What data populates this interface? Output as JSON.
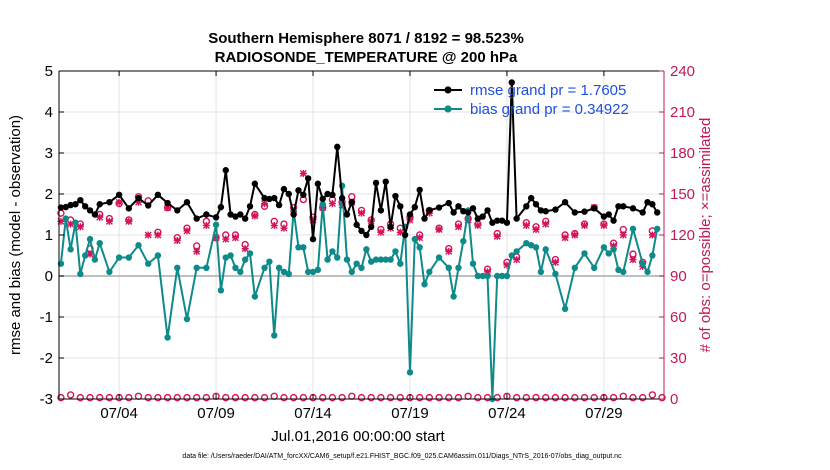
{
  "chart_data": {
    "type": "line",
    "title": "Southern Hemisphere 8071 / 8192 = 98.523%",
    "subtitle": "RADIOSONDE_TEMPERATURE @ 200 hPa",
    "xlabel": "Jul.01,2016 00:00:00 start",
    "ylabel_left": "rmse and bias (model - observation)",
    "ylabel_right": "# of obs: o=possible; ×=assimilated",
    "footnote": "data file: /Users/raeder/DAI/ATM_forcXX/CAM6_setup/f.e21.FHIST_BGC.f09_025.CAM6assim.011/Diags_NTrS_2016-07/obs_diag_output.nc",
    "x_tick_labels": [
      "07/04",
      "07/09",
      "07/14",
      "07/19",
      "07/24",
      "07/29"
    ],
    "x_tick_days": [
      4,
      9,
      14,
      19,
      24,
      29
    ],
    "xlim": [
      0.9,
      32.1
    ],
    "ylim_left": [
      -3,
      5
    ],
    "yticks_left": [
      "-3",
      "-2",
      "-1",
      "0",
      "1",
      "2",
      "3",
      "4",
      "5"
    ],
    "ylim_right": [
      0,
      240
    ],
    "yticks_right": [
      "0",
      "30",
      "60",
      "90",
      "120",
      "150",
      "180",
      "210",
      "240"
    ],
    "grid": true,
    "legend_position": "top-right",
    "colors": {
      "rmse": "#000000",
      "bias": "#0f8a8a",
      "obs": "#d4145a",
      "right_axis": "#c0185a",
      "zero_line": "#aaaaaa",
      "legend_text": "#1f4fe0"
    },
    "series": [
      {
        "name": "rmse grand pr = 1.7605",
        "axis": "left",
        "x": [
          1.0,
          1.25,
          1.5,
          1.75,
          2.0,
          2.25,
          2.5,
          2.75,
          3.0,
          3.5,
          4.0,
          4.5,
          5.0,
          5.5,
          6.0,
          6.5,
          7.0,
          7.5,
          8.0,
          8.5,
          9.0,
          9.25,
          9.5,
          9.75,
          10.0,
          10.25,
          10.5,
          10.75,
          11.0,
          11.5,
          11.75,
          12.0,
          12.25,
          12.5,
          12.75,
          13.0,
          13.25,
          13.5,
          13.75,
          14.0,
          14.25,
          14.5,
          14.75,
          15.0,
          15.25,
          15.5,
          15.75,
          16.0,
          16.25,
          16.5,
          16.75,
          17.0,
          17.25,
          17.5,
          17.75,
          18.0,
          18.25,
          18.5,
          18.75,
          19.0,
          19.25,
          19.5,
          19.75,
          20.0,
          20.5,
          21.0,
          21.25,
          21.5,
          21.75,
          22.0,
          22.25,
          22.5,
          22.75,
          23.0,
          23.25,
          23.5,
          23.75,
          24.0,
          24.25,
          24.5,
          25.0,
          25.25,
          25.5,
          25.75,
          26.0,
          26.5,
          27.0,
          27.5,
          28.0,
          28.5,
          29.0,
          29.25,
          29.5,
          29.75,
          30.0,
          30.5,
          31.0,
          31.25,
          31.5,
          31.75
        ],
        "y": [
          1.67,
          1.68,
          1.73,
          1.75,
          1.85,
          1.7,
          1.6,
          1.5,
          1.75,
          1.8,
          1.98,
          1.65,
          1.9,
          1.72,
          1.98,
          1.78,
          1.6,
          1.8,
          1.4,
          1.5,
          1.43,
          1.68,
          2.58,
          1.5,
          1.45,
          1.5,
          1.4,
          1.7,
          2.25,
          1.9,
          1.88,
          1.9,
          1.73,
          2.12,
          2.0,
          1.5,
          2.09,
          1.98,
          2.38,
          0.9,
          2.25,
          1.88,
          2.0,
          1.98,
          3.15,
          1.9,
          1.5,
          1.8,
          1.25,
          1.1,
          1.0,
          1.2,
          2.27,
          1.6,
          2.3,
          1.2,
          1.95,
          1.7,
          1.0,
          1.5,
          1.68,
          2.1,
          1.4,
          1.6,
          1.67,
          1.78,
          1.55,
          1.7,
          1.58,
          1.55,
          1.65,
          1.4,
          1.45,
          1.6,
          1.3,
          1.35,
          1.35,
          1.3,
          4.72,
          1.4,
          1.7,
          1.9,
          1.75,
          1.6,
          1.58,
          1.62,
          1.8,
          1.55,
          1.57,
          1.65,
          1.45,
          1.5,
          1.35,
          1.7,
          1.7,
          1.65,
          1.55,
          1.8,
          1.75,
          1.55
        ]
      },
      {
        "name": "bias grand pr = 0.34922",
        "axis": "left",
        "x": [
          1.0,
          1.25,
          1.5,
          1.75,
          2.0,
          2.25,
          2.5,
          2.75,
          3.0,
          3.5,
          4.0,
          4.5,
          5.0,
          5.5,
          6.0,
          6.5,
          7.0,
          7.5,
          8.0,
          8.5,
          9.0,
          9.25,
          9.5,
          9.75,
          10.0,
          10.25,
          10.5,
          10.75,
          11.0,
          11.5,
          11.75,
          12.0,
          12.25,
          12.5,
          12.75,
          13.0,
          13.25,
          13.5,
          13.75,
          14.0,
          14.25,
          14.5,
          14.75,
          15.0,
          15.25,
          15.5,
          15.75,
          16.0,
          16.25,
          16.5,
          16.75,
          17.0,
          17.25,
          17.5,
          17.75,
          18.0,
          18.25,
          18.5,
          18.75,
          19.0,
          19.25,
          19.5,
          19.75,
          20.0,
          20.5,
          21.0,
          21.25,
          21.5,
          21.75,
          22.0,
          22.25,
          22.5,
          22.75,
          23.0,
          23.25,
          23.5,
          23.75,
          24.0,
          24.25,
          24.5,
          25.0,
          25.25,
          25.5,
          25.75,
          26.0,
          26.5,
          27.0,
          27.5,
          28.0,
          28.5,
          29.0,
          29.25,
          29.5,
          29.75,
          30.0,
          30.5,
          31.0,
          31.25,
          31.5,
          31.75
        ],
        "y": [
          0.3,
          1.4,
          0.65,
          1.3,
          0.05,
          0.5,
          0.9,
          0.4,
          0.8,
          0.1,
          0.45,
          0.45,
          0.75,
          0.3,
          0.5,
          -1.5,
          0.2,
          -1.05,
          0.2,
          0.2,
          1.25,
          -0.35,
          0.45,
          0.5,
          0.2,
          0.1,
          0.4,
          0.55,
          -0.5,
          0.2,
          0.35,
          -1.45,
          0.2,
          0.1,
          0.05,
          1.6,
          0.7,
          0.7,
          0.1,
          0.1,
          0.15,
          1.75,
          0.4,
          0.6,
          0.45,
          2.2,
          0.4,
          0.1,
          0.3,
          0.2,
          0.65,
          0.35,
          0.4,
          0.4,
          0.4,
          0.4,
          0.6,
          0.3,
          1.2,
          -2.35,
          0.9,
          0.7,
          -0.2,
          0.1,
          0.45,
          0.2,
          -0.5,
          0.2,
          0.85,
          1.6,
          0.3,
          0.0,
          0.0,
          0.0,
          -3.0,
          0.0,
          0.0,
          0.0,
          0.5,
          0.6,
          0.8,
          0.75,
          0.7,
          0.1,
          0.65,
          0.05,
          -0.8,
          0.2,
          0.55,
          0.2,
          0.7,
          0.55,
          0.65,
          0.15,
          0.1,
          1.15,
          0.3,
          0.1,
          0.5,
          1.15
        ]
      },
      {
        "name": "possible",
        "axis": "right",
        "marker": "o",
        "x": [
          1.0,
          1.5,
          2.0,
          2.5,
          3.0,
          3.5,
          4.0,
          4.5,
          5.0,
          5.5,
          6.0,
          6.5,
          7.0,
          7.5,
          8.0,
          8.5,
          9.0,
          9.5,
          10.0,
          10.5,
          11.0,
          11.5,
          12.0,
          12.5,
          13.0,
          13.5,
          14.0,
          14.5,
          15.0,
          15.5,
          16.0,
          16.5,
          17.0,
          17.5,
          18.0,
          18.5,
          19.0,
          19.5,
          20.0,
          20.5,
          21.0,
          21.5,
          22.0,
          22.5,
          23.0,
          23.5,
          24.0,
          24.5,
          25.0,
          25.5,
          26.0,
          26.5,
          27.0,
          27.5,
          28.0,
          28.5,
          29.0,
          29.5,
          30.0,
          30.5,
          31.0,
          31.5
        ],
        "y": [
          136,
          131,
          128,
          110,
          135,
          132,
          143,
          131,
          148,
          145,
          122,
          140,
          118,
          125,
          112,
          130,
          118,
          120,
          120,
          113,
          135,
          141,
          130,
          128,
          140,
          146,
          133,
          140,
          146,
          144,
          148,
          138,
          131,
          124,
          128,
          125,
          133,
          120,
          138,
          125,
          110,
          128,
          132,
          128,
          95,
          121,
          100,
          104,
          129,
          126,
          130,
          102,
          120,
          121,
          128,
          140,
          128,
          114,
          124,
          106,
          100,
          123
        ]
      },
      {
        "name": "assimilated",
        "axis": "right",
        "marker": "x",
        "x": [
          1.0,
          1.5,
          2.0,
          2.5,
          3.0,
          3.5,
          4.0,
          4.5,
          5.0,
          5.5,
          6.0,
          6.5,
          7.0,
          7.5,
          8.0,
          8.5,
          9.0,
          9.5,
          10.0,
          10.5,
          11.0,
          11.5,
          12.0,
          12.5,
          13.0,
          13.5,
          14.0,
          14.5,
          15.0,
          15.5,
          16.0,
          16.5,
          17.0,
          17.5,
          18.0,
          18.5,
          19.0,
          19.5,
          20.0,
          20.5,
          21.0,
          21.5,
          22.0,
          22.5,
          23.0,
          23.5,
          24.0,
          24.5,
          25.0,
          25.5,
          26.0,
          26.5,
          27.0,
          27.5,
          28.0,
          28.5,
          29.0,
          29.5,
          30.0,
          30.5,
          31.0,
          31.5
        ],
        "y": [
          130,
          128,
          126,
          106,
          133,
          130,
          144,
          130,
          144,
          120,
          120,
          140,
          116,
          123,
          108,
          127,
          118,
          117,
          118,
          110,
          134,
          143,
          127,
          125,
          137,
          165,
          131,
          140,
          143,
          142,
          144,
          136,
          130,
          122,
          125,
          122,
          131,
          118,
          136,
          124,
          108,
          126,
          131,
          127,
          93,
          119,
          98,
          102,
          127,
          124,
          128,
          100,
          118,
          120,
          127,
          140,
          127,
          112,
          120,
          102,
          97,
          120
        ]
      },
      {
        "name": "possible-bottom",
        "axis": "right",
        "marker": "o",
        "x": [
          1.0,
          1.5,
          2.0,
          2.5,
          3.0,
          3.5,
          4.0,
          4.5,
          5.0,
          5.5,
          6.0,
          6.5,
          7.0,
          7.5,
          8.0,
          8.5,
          9.0,
          9.5,
          10.0,
          10.5,
          11.0,
          11.5,
          12.0,
          12.5,
          13.0,
          13.5,
          14.0,
          14.5,
          15.0,
          15.5,
          16.0,
          16.5,
          17.0,
          17.5,
          18.0,
          18.5,
          19.0,
          19.5,
          20.0,
          20.5,
          21.0,
          21.5,
          22.0,
          22.5,
          23.0,
          23.5,
          24.0,
          24.5,
          25.0,
          25.5,
          26.0,
          26.5,
          27.0,
          27.5,
          28.0,
          28.5,
          29.0,
          29.5,
          30.0,
          30.5,
          31.0,
          31.5,
          32.0
        ],
        "y": [
          1,
          3,
          1,
          1,
          1,
          1,
          1,
          1,
          2,
          1,
          1,
          1,
          1,
          1,
          1,
          1,
          2,
          1,
          1,
          1,
          1,
          1,
          2,
          1,
          1,
          1,
          1,
          1,
          1,
          1,
          2,
          1,
          1,
          1,
          1,
          1,
          1,
          1,
          1,
          1,
          1,
          1,
          2,
          1,
          1,
          1,
          2,
          1,
          1,
          1,
          1,
          1,
          1,
          1,
          1,
          1,
          1,
          1,
          2,
          1,
          1,
          3,
          1
        ]
      }
    ]
  }
}
